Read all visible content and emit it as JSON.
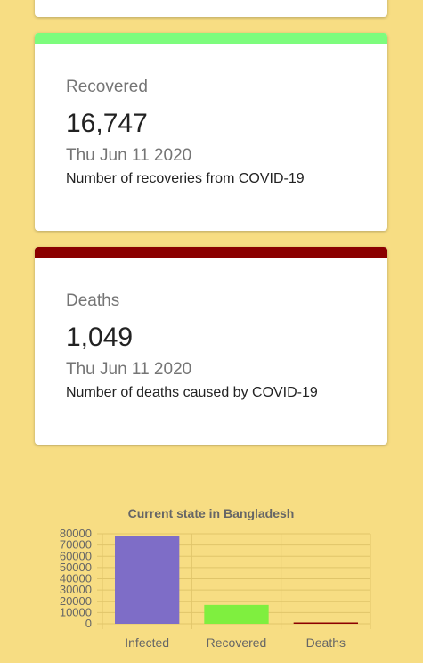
{
  "cards": {
    "recovered": {
      "title": "Recovered",
      "value": "16,747",
      "date": "Thu Jun 11 2020",
      "description": "Number of recoveries from COVID-19",
      "accent": "#7dfc7d"
    },
    "deaths": {
      "title": "Deaths",
      "value": "1,049",
      "date": "Thu Jun 11 2020",
      "description": "Number of deaths caused by COVID-19",
      "accent": "#8b0000"
    }
  },
  "chart_data": {
    "type": "bar",
    "title": "Current state in Bangladesh",
    "categories": [
      "Infected",
      "Recovered",
      "Deaths"
    ],
    "values": [
      78052,
      16747,
      1049
    ],
    "colors": [
      "#7e6dc7",
      "#7fef3f",
      "#8b0000"
    ],
    "ylim": [
      0,
      80000
    ],
    "yticks": [
      0,
      10000,
      20000,
      30000,
      40000,
      50000,
      60000,
      70000,
      80000
    ],
    "ytick_labels": [
      "0",
      "10000",
      "20000",
      "30000",
      "40000",
      "50000",
      "60000",
      "70000",
      "80000"
    ],
    "grid": true,
    "legend": false
  }
}
